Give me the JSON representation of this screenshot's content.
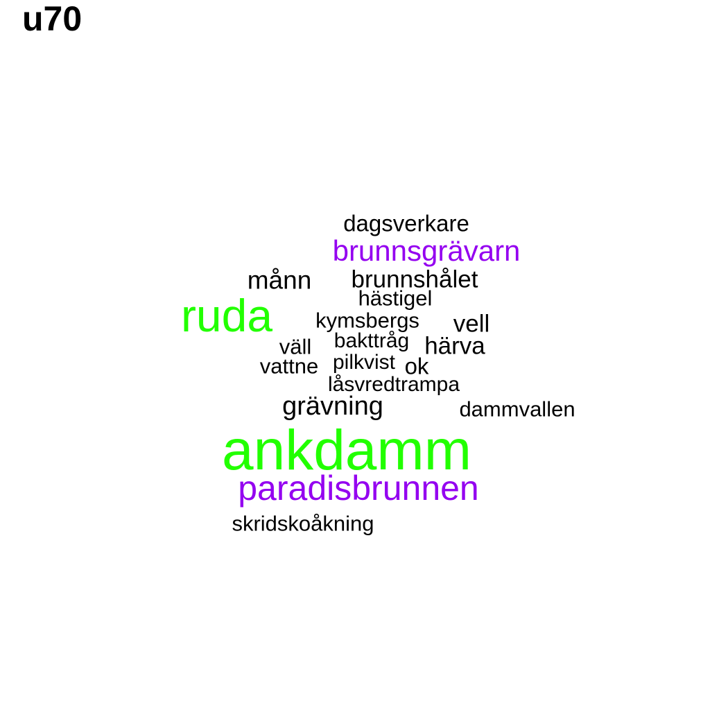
{
  "title": "u70",
  "colors": {
    "green": "#22ff00",
    "purple": "#9400f0",
    "black": "#000000"
  },
  "words": [
    {
      "text": "ankdamm",
      "color": "#22ff00"
    },
    {
      "text": "ruda",
      "color": "#22ff00"
    },
    {
      "text": "paradisbrunnen",
      "color": "#9400f0"
    },
    {
      "text": "brunnsgrävarn",
      "color": "#9400f0"
    },
    {
      "text": "dagsverkare",
      "color": "#000000"
    },
    {
      "text": "månn",
      "color": "#000000"
    },
    {
      "text": "brunnshålet",
      "color": "#000000"
    },
    {
      "text": "hästigel",
      "color": "#000000"
    },
    {
      "text": "kymsbergs",
      "color": "#000000"
    },
    {
      "text": "vell",
      "color": "#000000"
    },
    {
      "text": "väll",
      "color": "#000000"
    },
    {
      "text": "bakttråg",
      "color": "#000000"
    },
    {
      "text": "härva",
      "color": "#000000"
    },
    {
      "text": "vattne",
      "color": "#000000"
    },
    {
      "text": "pilkvist",
      "color": "#000000"
    },
    {
      "text": "ok",
      "color": "#000000"
    },
    {
      "text": "låsvredtrampa",
      "color": "#000000"
    },
    {
      "text": "grävning",
      "color": "#000000"
    },
    {
      "text": "dammvallen",
      "color": "#000000"
    },
    {
      "text": "skridskoåkning",
      "color": "#000000"
    }
  ]
}
